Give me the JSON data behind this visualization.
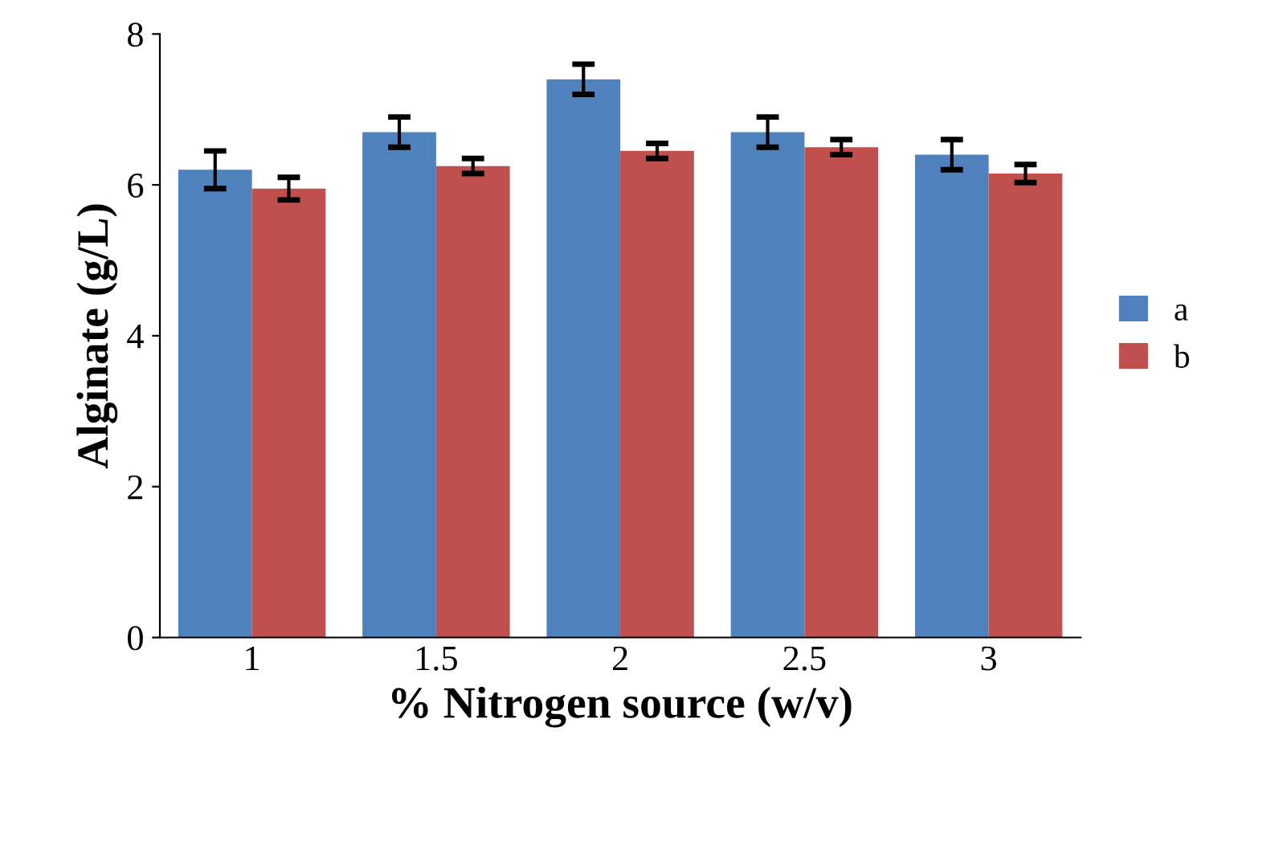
{
  "chart_data": {
    "type": "bar",
    "xlabel": "% Nitrogen source (w/v)",
    "ylabel": "Alginate (g/L)",
    "categories": [
      "1",
      "1.5",
      "2",
      "2.5",
      "3"
    ],
    "series": [
      {
        "name": "a",
        "color": "#4f81bd",
        "values": [
          6.2,
          6.7,
          7.4,
          6.7,
          6.4
        ],
        "errors": [
          0.25,
          0.2,
          0.2,
          0.2,
          0.2
        ]
      },
      {
        "name": "b",
        "color": "#c0504d",
        "values": [
          5.95,
          6.25,
          6.45,
          6.5,
          6.15
        ],
        "errors": [
          0.15,
          0.1,
          0.1,
          0.1,
          0.12
        ]
      }
    ],
    "ylim": [
      0,
      8
    ],
    "yticks": [
      0,
      2,
      4,
      6,
      8
    ],
    "grid": false,
    "legend": "right"
  }
}
